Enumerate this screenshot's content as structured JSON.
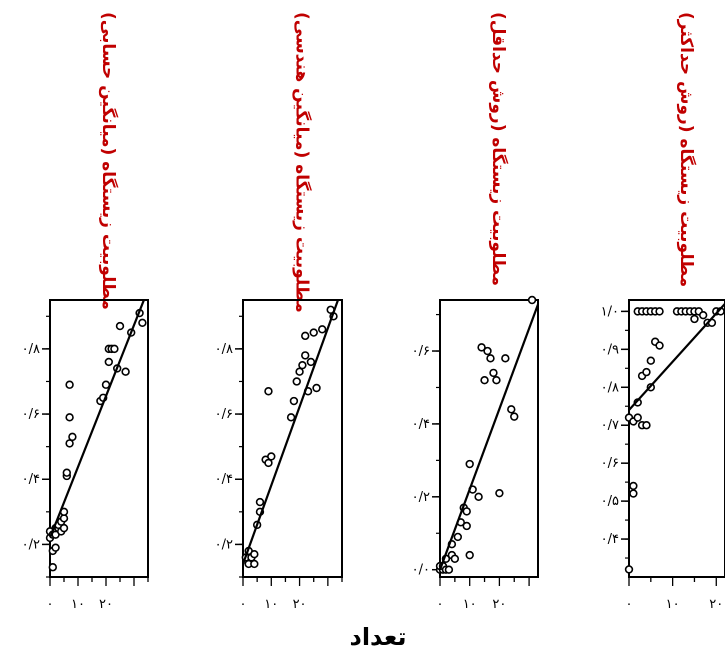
{
  "figure": {
    "xlabel": "تعداد"
  },
  "chart_data": [
    {
      "type": "scatter",
      "title": "مطلوبیت زیستگاه (میانگین حسابی)",
      "xlabel": "تعداد",
      "xlim": [
        0,
        35
      ],
      "ylim": [
        0.1,
        0.95
      ],
      "xticks": [
        0,
        10,
        20
      ],
      "xtick_labels": [
        "۰",
        "۱۰",
        "۲۰"
      ],
      "yticks": [
        0.2,
        0.4,
        0.6,
        0.8
      ],
      "ytick_labels": [
        "۰/۲",
        "۰/۴",
        "۰/۶",
        "۰/۸"
      ],
      "points": [
        [
          0,
          0.22
        ],
        [
          0,
          0.24
        ],
        [
          1,
          0.13
        ],
        [
          1,
          0.18
        ],
        [
          1,
          0.23
        ],
        [
          2,
          0.19
        ],
        [
          2,
          0.23
        ],
        [
          2,
          0.25
        ],
        [
          3,
          0.25
        ],
        [
          3,
          0.26
        ],
        [
          4,
          0.24
        ],
        [
          4,
          0.27
        ],
        [
          5,
          0.25
        ],
        [
          5,
          0.28
        ],
        [
          5,
          0.3
        ],
        [
          6,
          0.41
        ],
        [
          6,
          0.42
        ],
        [
          7,
          0.51
        ],
        [
          7,
          0.59
        ],
        [
          7,
          0.69
        ],
        [
          8,
          0.53
        ],
        [
          18,
          0.64
        ],
        [
          19,
          0.65
        ],
        [
          20,
          0.69
        ],
        [
          21,
          0.76
        ],
        [
          21,
          0.8
        ],
        [
          22,
          0.8
        ],
        [
          23,
          0.8
        ],
        [
          24,
          0.74
        ],
        [
          25,
          0.87
        ],
        [
          27,
          0.73
        ],
        [
          29,
          0.85
        ],
        [
          32,
          0.91
        ],
        [
          33,
          0.88
        ]
      ],
      "fit": [
        [
          0,
          0.22
        ],
        [
          34,
          0.96
        ]
      ]
    },
    {
      "type": "scatter",
      "title": "مطلوبیت زیستگاه (میانگین هندسی)",
      "xlabel": "تعداد",
      "xlim": [
        0,
        35
      ],
      "ylim": [
        0.1,
        0.95
      ],
      "xticks": [
        0,
        10,
        20
      ],
      "xtick_labels": [
        "۰",
        "۱۰",
        "۲۰"
      ],
      "yticks": [
        0.2,
        0.4,
        0.6,
        0.8
      ],
      "ytick_labels": [
        "۰/۲",
        "۰/۴",
        "۰/۶",
        "۰/۸"
      ],
      "points": [
        [
          1,
          0.16
        ],
        [
          2,
          0.14
        ],
        [
          2,
          0.18
        ],
        [
          3,
          0.16
        ],
        [
          4,
          0.14
        ],
        [
          4,
          0.17
        ],
        [
          5,
          0.26
        ],
        [
          6,
          0.3
        ],
        [
          6,
          0.33
        ],
        [
          8,
          0.46
        ],
        [
          9,
          0.45
        ],
        [
          10,
          0.47
        ],
        [
          9,
          0.67
        ],
        [
          17,
          0.59
        ],
        [
          18,
          0.64
        ],
        [
          19,
          0.7
        ],
        [
          20,
          0.73
        ],
        [
          21,
          0.75
        ],
        [
          22,
          0.78
        ],
        [
          22,
          0.84
        ],
        [
          23,
          0.67
        ],
        [
          24,
          0.76
        ],
        [
          25,
          0.85
        ],
        [
          26,
          0.68
        ],
        [
          28,
          0.86
        ],
        [
          31,
          0.92
        ],
        [
          32,
          0.9
        ]
      ],
      "fit": [
        [
          0,
          0.14
        ],
        [
          34,
          0.96
        ]
      ]
    },
    {
      "type": "scatter",
      "title": "مطلوبیت زیستگاه (روش حداقل)",
      "xlabel": "تعداد",
      "xlim": [
        0,
        33
      ],
      "ylim": [
        -0.02,
        0.74
      ],
      "xticks": [
        0,
        10,
        20
      ],
      "xtick_labels": [
        "۰",
        "۱۰",
        "۲۰"
      ],
      "yticks": [
        0.0,
        0.2,
        0.4,
        0.6
      ],
      "ytick_labels": [
        "۰/۰",
        "۰/۲",
        "۰/۴",
        "۰/۶"
      ],
      "points": [
        [
          0,
          0.0
        ],
        [
          0,
          0.01
        ],
        [
          1,
          0.0
        ],
        [
          1,
          0.01
        ],
        [
          2,
          0.0
        ],
        [
          2,
          0.03
        ],
        [
          3,
          0.0
        ],
        [
          4,
          0.04
        ],
        [
          4,
          0.07
        ],
        [
          5,
          0.03
        ],
        [
          6,
          0.09
        ],
        [
          7,
          0.13
        ],
        [
          8,
          0.17
        ],
        [
          9,
          0.12
        ],
        [
          9,
          0.16
        ],
        [
          10,
          0.29
        ],
        [
          10,
          0.04
        ],
        [
          11,
          0.22
        ],
        [
          13,
          0.2
        ],
        [
          14,
          0.61
        ],
        [
          15,
          0.52
        ],
        [
          16,
          0.6
        ],
        [
          17,
          0.58
        ],
        [
          18,
          0.54
        ],
        [
          19,
          0.52
        ],
        [
          20,
          0.21
        ],
        [
          22,
          0.58
        ],
        [
          24,
          0.44
        ],
        [
          25,
          0.42
        ],
        [
          31,
          0.74
        ]
      ],
      "fit": [
        [
          0,
          0.0
        ],
        [
          34,
          0.75
        ]
      ]
    },
    {
      "type": "scatter",
      "title": "مطلوبیت زیستگاه (روش حداکثر)",
      "xlabel": "تعداد",
      "xlim": [
        0,
        22
      ],
      "ylim": [
        0.3,
        1.03
      ],
      "xticks": [
        0,
        10,
        20
      ],
      "xtick_labels": [
        "۰",
        "۱۰",
        "۲۰"
      ],
      "yticks": [
        0.4,
        0.5,
        0.6,
        0.7,
        0.8,
        0.9,
        1.0
      ],
      "ytick_labels": [
        "۰/۴",
        "۰/۵",
        "۰/۶",
        "۰/۷",
        "۰/۸",
        "۰/۹",
        "۱/۰"
      ],
      "points": [
        [
          0,
          0.32
        ],
        [
          1,
          0.52
        ],
        [
          1,
          0.54
        ],
        [
          0,
          0.72
        ],
        [
          1,
          0.71
        ],
        [
          2,
          0.72
        ],
        [
          3,
          0.7
        ],
        [
          4,
          0.7
        ],
        [
          2,
          0.76
        ],
        [
          3,
          0.83
        ],
        [
          4,
          0.84
        ],
        [
          5,
          0.8
        ],
        [
          5,
          0.87
        ],
        [
          6,
          0.92
        ],
        [
          7,
          0.91
        ],
        [
          2,
          1.0
        ],
        [
          3,
          1.0
        ],
        [
          4,
          1.0
        ],
        [
          5,
          1.0
        ],
        [
          6,
          1.0
        ],
        [
          7,
          1.0
        ],
        [
          11,
          1.0
        ],
        [
          12,
          1.0
        ],
        [
          13,
          1.0
        ],
        [
          14,
          1.0
        ],
        [
          15,
          1.0
        ],
        [
          16,
          1.0
        ],
        [
          15,
          0.98
        ],
        [
          17,
          0.99
        ],
        [
          18,
          0.97
        ],
        [
          19,
          0.97
        ],
        [
          20,
          1.0
        ],
        [
          21,
          1.0
        ]
      ],
      "fit": [
        [
          0,
          0.74
        ],
        [
          22,
          1.02
        ]
      ]
    }
  ]
}
